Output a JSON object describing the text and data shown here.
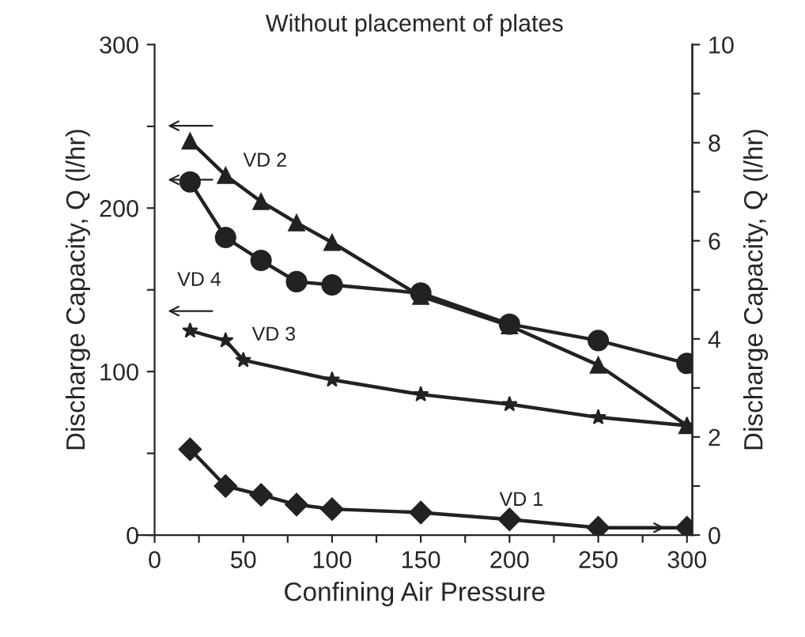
{
  "chart_data": {
    "type": "line",
    "title": "Without placement of plates",
    "xlabel": "Confining Air Pressure",
    "ylabel": "Discharge Capacity, Q (l/hr)",
    "y2label": "Discharge Capacity, Q (l/hr)",
    "xlim": [
      -10,
      303
    ],
    "xticks": [
      0,
      {
        "value": 25,
        "label": null
      },
      50,
      {
        "value": 75,
        "label": null
      },
      100,
      {
        "value": 125,
        "label": null
      },
      150,
      {
        "value": 175,
        "label": null
      },
      200,
      {
        "value": 225,
        "label": null
      },
      250,
      {
        "value": 275,
        "label": null
      },
      300
    ],
    "ylim": [
      0,
      300
    ],
    "yticks": [
      0,
      {
        "value": 50,
        "label": null
      },
      100,
      {
        "value": 150,
        "label": null
      },
      200,
      {
        "value": 250,
        "label": null
      },
      300
    ],
    "y2lim": [
      0,
      10
    ],
    "y2ticks": [
      0,
      {
        "value": 1,
        "label": null
      },
      2,
      {
        "value": 3,
        "label": null
      },
      4,
      {
        "value": 5,
        "label": null
      },
      6,
      {
        "value": 7,
        "label": null
      },
      8,
      {
        "value": 9,
        "label": null
      },
      10
    ],
    "grid": false,
    "legend": false,
    "line_style": "solid",
    "series": [
      {
        "name": "VD 2",
        "color": "#222222",
        "marker": "triangle",
        "x": [
          20,
          40,
          60,
          80,
          100,
          150,
          200,
          250,
          300
        ],
        "values": [
          241,
          220,
          204,
          191,
          179,
          146,
          128,
          104,
          67
        ]
      },
      {
        "name": "VD 4",
        "color": "#222222",
        "marker": "circle",
        "x": [
          20,
          40,
          60,
          80,
          100,
          150,
          200,
          250,
          300
        ],
        "values": [
          216,
          182,
          168,
          155,
          153,
          148,
          129,
          119,
          105
        ]
      },
      {
        "name": "VD 3",
        "color": "#222222",
        "marker": "star",
        "x": [
          20,
          40,
          50,
          100,
          150,
          200,
          250,
          300
        ],
        "values": [
          125,
          119,
          107,
          95,
          86,
          80,
          72,
          67
        ]
      },
      {
        "name": "VD 1",
        "color": "#222222",
        "marker": "diamond",
        "axis": "y2",
        "x": [
          20,
          40,
          60,
          80,
          100,
          150,
          200,
          250,
          300
        ],
        "values": [
          1.75,
          1.0,
          0.82,
          0.62,
          0.53,
          0.46,
          0.32,
          0.15,
          0.15
        ]
      }
    ]
  }
}
